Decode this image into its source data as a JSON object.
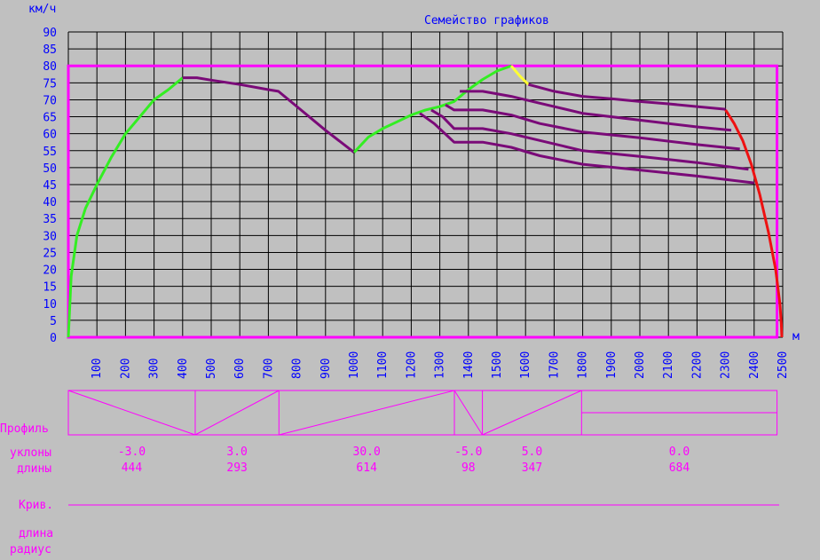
{
  "chart_data": {
    "type": "line",
    "title": "Семейство графиков",
    "ylabel": "км/ч",
    "xlabel": "м",
    "xlim": [
      0,
      2500
    ],
    "ylim": [
      0,
      90
    ],
    "x_ticks": [
      100,
      200,
      300,
      400,
      500,
      600,
      700,
      800,
      900,
      1000,
      1100,
      1200,
      1300,
      1400,
      1500,
      1600,
      1700,
      1800,
      1900,
      2000,
      2100,
      2200,
      2300,
      2400,
      2500
    ],
    "y_ticks": [
      0,
      5,
      10,
      15,
      20,
      25,
      30,
      35,
      40,
      45,
      50,
      55,
      60,
      65,
      70,
      75,
      80,
      85,
      90
    ],
    "speed_limit": 80,
    "grid": true,
    "series": [
      {
        "color": "#33ee22",
        "points": [
          [
            0,
            0
          ],
          [
            10,
            18
          ],
          [
            30,
            30
          ],
          [
            60,
            38
          ],
          [
            100,
            45
          ],
          [
            150,
            53
          ],
          [
            200,
            60
          ],
          [
            250,
            65
          ],
          [
            300,
            70
          ],
          [
            350,
            73
          ],
          [
            400,
            76.5
          ]
        ]
      },
      {
        "color": "#7a0a78",
        "points": [
          [
            400,
            76.5
          ],
          [
            450,
            76.5
          ],
          [
            500,
            75.8
          ],
          [
            600,
            74.5
          ],
          [
            700,
            73
          ],
          [
            735,
            72.5
          ],
          [
            800,
            68
          ],
          [
            900,
            61
          ],
          [
            1000,
            54.5
          ]
        ]
      },
      {
        "color": "#33ee22",
        "points": [
          [
            1000,
            54.5
          ],
          [
            1050,
            59
          ],
          [
            1100,
            61.5
          ],
          [
            1150,
            63.5
          ],
          [
            1200,
            65.5
          ],
          [
            1250,
            67
          ],
          [
            1300,
            68
          ],
          [
            1350,
            69.5
          ],
          [
            1400,
            73
          ],
          [
            1450,
            76
          ],
          [
            1500,
            78.5
          ],
          [
            1550,
            80
          ]
        ]
      },
      {
        "color": "#ffff33",
        "points": [
          [
            1550,
            80
          ],
          [
            1580,
            77
          ],
          [
            1610,
            74.5
          ]
        ]
      },
      {
        "color": "#7a0a78",
        "points": [
          [
            1610,
            74.5
          ],
          [
            1700,
            72.5
          ],
          [
            1800,
            71
          ],
          [
            1900,
            70.3
          ],
          [
            2000,
            69.5
          ],
          [
            2100,
            68.8
          ],
          [
            2200,
            68
          ],
          [
            2300,
            67.2
          ]
        ]
      },
      {
        "color": "#7a0a78",
        "points": [
          [
            1370,
            72.5
          ],
          [
            1450,
            72.5
          ],
          [
            1550,
            71
          ],
          [
            1650,
            69
          ],
          [
            1800,
            66
          ],
          [
            2000,
            64
          ],
          [
            2200,
            62
          ],
          [
            2320,
            61
          ]
        ]
      },
      {
        "color": "#7a0a78",
        "points": [
          [
            1320,
            68.5
          ],
          [
            1350,
            67
          ],
          [
            1450,
            67
          ],
          [
            1550,
            65.5
          ],
          [
            1650,
            63
          ],
          [
            1800,
            60.5
          ],
          [
            2000,
            58.8
          ],
          [
            2200,
            56.8
          ],
          [
            2350,
            55.5
          ]
        ]
      },
      {
        "color": "#7a0a78",
        "points": [
          [
            1270,
            67
          ],
          [
            1310,
            65
          ],
          [
            1350,
            61.5
          ],
          [
            1450,
            61.5
          ],
          [
            1550,
            60
          ],
          [
            1650,
            58
          ],
          [
            1800,
            55
          ],
          [
            2000,
            53.3
          ],
          [
            2200,
            51.5
          ],
          [
            2380,
            49.5
          ]
        ]
      },
      {
        "color": "#7a0a78",
        "points": [
          [
            1230,
            66
          ],
          [
            1280,
            63
          ],
          [
            1350,
            57.5
          ],
          [
            1450,
            57.5
          ],
          [
            1550,
            56
          ],
          [
            1650,
            53.5
          ],
          [
            1800,
            51
          ],
          [
            2000,
            49.3
          ],
          [
            2200,
            47.5
          ],
          [
            2400,
            45.5
          ]
        ]
      },
      {
        "color": "#ee1111",
        "points": [
          [
            2300,
            67
          ],
          [
            2330,
            63
          ],
          [
            2360,
            58
          ],
          [
            2390,
            51
          ],
          [
            2420,
            42
          ],
          [
            2450,
            31
          ],
          [
            2475,
            20
          ],
          [
            2490,
            10
          ],
          [
            2495,
            4
          ],
          [
            2497,
            0
          ]
        ]
      }
    ]
  },
  "profile": {
    "label": "Профиль",
    "slopes_label": "уклоны",
    "lengths_label": "длины",
    "segments": [
      {
        "slope": "-3.0",
        "length": "444",
        "start": 0,
        "end": 444,
        "shape": "down"
      },
      {
        "slope": "3.0",
        "length": "293",
        "start": 444,
        "end": 737,
        "shape": "up"
      },
      {
        "slope": "30.0",
        "length": "614",
        "start": 737,
        "end": 1351,
        "shape": "up"
      },
      {
        "slope": "-5.0",
        "length": "98",
        "start": 1351,
        "end": 1449,
        "shape": "down"
      },
      {
        "slope": "5.0",
        "length": "347",
        "start": 1449,
        "end": 1796,
        "shape": "up"
      },
      {
        "slope": "0.0",
        "length": "684",
        "start": 1796,
        "end": 2480,
        "shape": "flat"
      }
    ]
  },
  "curves": {
    "label": "Крив.",
    "length_label": "длина",
    "radius_label": "радиус"
  }
}
